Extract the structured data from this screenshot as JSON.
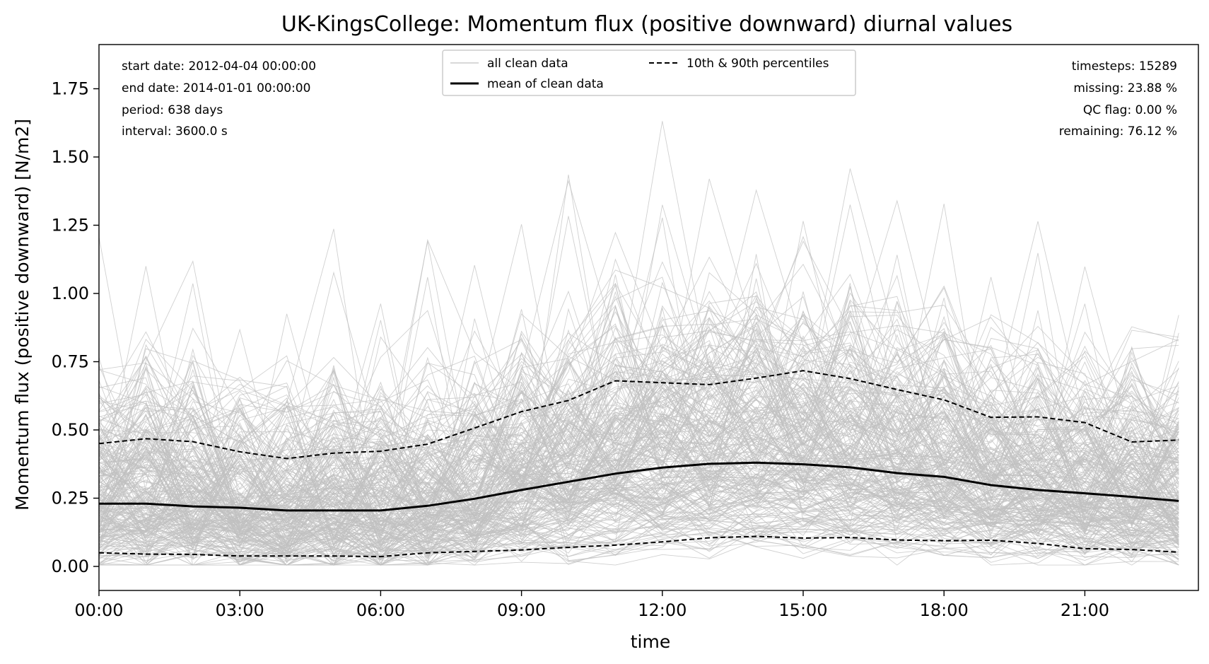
{
  "chart_data": {
    "type": "line",
    "title": "UK-KingsCollege: Momentum flux (positive downward) diurnal values",
    "xlabel": "time",
    "ylabel": "Momentum flux (positive downward) [N/m2]",
    "xlim": [
      0,
      23.5
    ],
    "ylim": [
      -0.09,
      1.92
    ],
    "x_ticks": [
      0,
      3,
      6,
      9,
      12,
      15,
      18,
      21
    ],
    "x_tick_labels": [
      "00:00",
      "03:00",
      "06:00",
      "09:00",
      "12:00",
      "15:00",
      "18:00",
      "21:00"
    ],
    "y_ticks": [
      0,
      0.25,
      0.5,
      0.75,
      1.0,
      1.25,
      1.5,
      1.75
    ],
    "y_tick_labels": [
      "0.00",
      "0.25",
      "0.50",
      "0.75",
      "1.00",
      "1.25",
      "1.50",
      "1.75"
    ],
    "x": [
      0,
      1,
      2,
      3,
      4,
      5,
      6,
      7,
      8,
      9,
      10,
      11,
      12,
      13,
      14,
      15,
      16,
      17,
      18,
      19,
      20,
      21,
      22,
      23
    ],
    "series": [
      {
        "name": "mean of clean data",
        "style": "solid",
        "color": "#000000",
        "values": [
          0.23,
          0.23,
          0.22,
          0.215,
          0.205,
          0.205,
          0.205,
          0.222,
          0.248,
          0.28,
          0.31,
          0.34,
          0.362,
          0.376,
          0.38,
          0.374,
          0.363,
          0.342,
          0.328,
          0.298,
          0.28,
          0.268,
          0.255,
          0.24
        ]
      },
      {
        "name": "10th & 90th percentiles",
        "style": "dashed",
        "color": "#000000",
        "values": [
          0.45,
          0.468,
          0.457,
          0.42,
          0.395,
          0.415,
          0.422,
          0.448,
          0.507,
          0.567,
          0.608,
          0.68,
          0.673,
          0.666,
          0.69,
          0.717,
          0.688,
          0.648,
          0.61,
          0.546,
          0.548,
          0.527,
          0.456,
          0.463
        ]
      },
      {
        "name": "10th & 90th percentiles",
        "style": "dashed",
        "color": "#000000",
        "values": [
          0.05,
          0.045,
          0.044,
          0.038,
          0.038,
          0.038,
          0.036,
          0.05,
          0.055,
          0.06,
          0.07,
          0.078,
          0.09,
          0.105,
          0.11,
          0.104,
          0.106,
          0.097,
          0.094,
          0.096,
          0.084,
          0.065,
          0.062,
          0.052
        ]
      }
    ],
    "background_series": {
      "name": "all clean data",
      "color": "#c0c0c0",
      "description_count": 638
    },
    "legend": {
      "placement": "top-center",
      "entries": [
        {
          "label": "all clean data",
          "style": "thin-gray"
        },
        {
          "label": "10th & 90th percentiles",
          "style": "dashed"
        },
        {
          "label": "mean of clean data",
          "style": "solid"
        }
      ]
    },
    "annotations_left": [
      "start date: 2012-04-04 00:00:00",
      "end date: 2014-01-01 00:00:00",
      "period: 638 days",
      "interval: 3600.0 s"
    ],
    "annotations_right": [
      "timesteps: 15289",
      "missing: 23.88 %",
      "QC flag: 0.00 %",
      "remaining: 76.12 %"
    ],
    "grid": false
  }
}
